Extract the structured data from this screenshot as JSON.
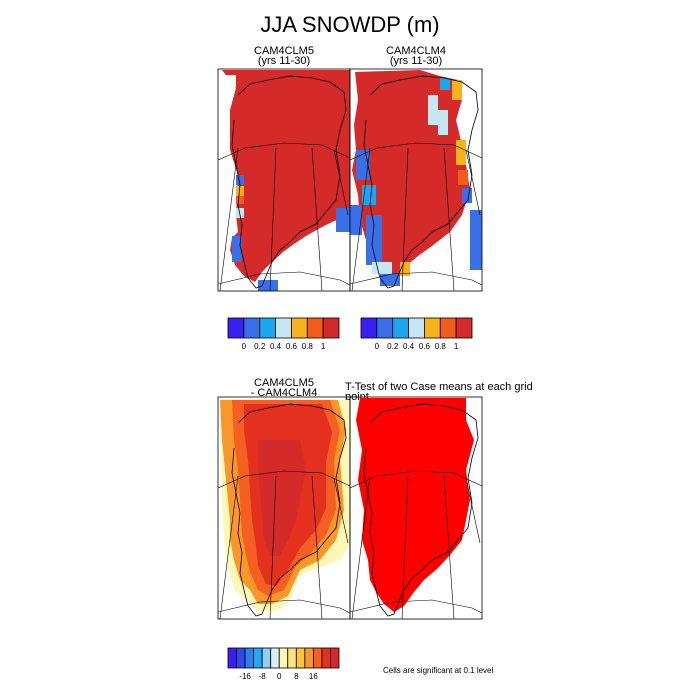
{
  "page": {
    "main_title": "JJA SNOWDP (m)"
  },
  "panels": {
    "top_left": {
      "title_line1": "CAM4CLM5",
      "title_line2": "(yrs 11-30)"
    },
    "top_right": {
      "title_line1": "CAM4CLM4",
      "title_line2": "(yrs 11-30)"
    },
    "bottom_left": {
      "title_line1": "CAM4CLM5",
      "title_line2": "- CAM4CLM4"
    },
    "bottom_right": {
      "title": "T-Test of two Case means at each grid point"
    }
  },
  "colorbars": {
    "top": {
      "colors": [
        "#3a1ff2",
        "#3b6fe8",
        "#1aa7f0",
        "#c6e6f3",
        "#f7b21c",
        "#f25d1e",
        "#d42a2a"
      ],
      "tick_labels": [
        "0",
        "0.2",
        "0.4",
        "0.6",
        "0.8",
        "1"
      ]
    },
    "bottom": {
      "colors": [
        "#3a1ff2",
        "#3348e8",
        "#2d7ff0",
        "#25a8f0",
        "#8fd0f2",
        "#d8eef6",
        "#fdf7b5",
        "#fde47a",
        "#fcc43a",
        "#f9972a",
        "#f55f22",
        "#e4301e",
        "#d42a2a"
      ],
      "tick_labels": [
        "-16",
        "-8",
        "0",
        "8",
        "16"
      ]
    }
  },
  "significance_note": "Cells are significant at 0.1 level",
  "chart_data": [
    {
      "type": "heatmap",
      "title": "CAM4CLM5 (yrs 11-30)",
      "variable": "JJA SNOWDP",
      "units": "m",
      "levels": [
        0,
        0.2,
        0.4,
        0.6,
        0.8,
        1
      ],
      "dominant_range": ">1",
      "region": "Greenland"
    },
    {
      "type": "heatmap",
      "title": "CAM4CLM4 (yrs 11-30)",
      "variable": "JJA SNOWDP",
      "units": "m",
      "levels": [
        0,
        0.2,
        0.4,
        0.6,
        0.8,
        1
      ],
      "dominant_range": ">1",
      "region": "Greenland"
    },
    {
      "type": "heatmap",
      "title": "CAM4CLM5 - CAM4CLM4",
      "variable": "JJA SNOWDP difference",
      "units": "m",
      "levels": [
        -16,
        -8,
        0,
        8,
        16
      ],
      "region": "Greenland"
    },
    {
      "type": "heatmap",
      "title": "T-Test of two Case means at each grid point",
      "region": "Greenland"
    }
  ]
}
